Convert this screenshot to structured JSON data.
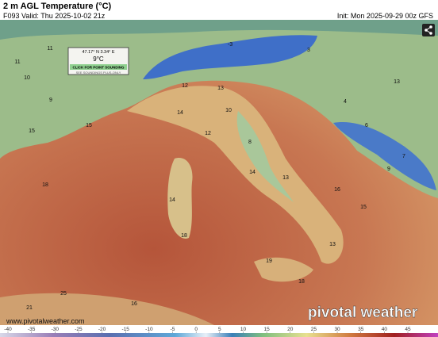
{
  "header": {
    "title": "2 m AGL Temperature (°C)",
    "valid": "F093 Valid: Thu 2025-10-02 21z",
    "init": "Init: Mon 2025-09-29 00z GFS"
  },
  "tooltip": {
    "coords": "47.17° N 3.34° E",
    "value": "9°C",
    "button": "CLICK FOR POINT SOUNDING",
    "note": "SEE SOUNDINGS PLUS-ONLY"
  },
  "map_labels": [
    "11",
    "11",
    "10",
    "9",
    "15",
    "15",
    "12",
    "13",
    "10",
    "14",
    "12",
    "8",
    "14",
    "13",
    "16",
    "15",
    "14",
    "18",
    "18",
    "13",
    "19",
    "18",
    "16",
    "21",
    "25",
    "3",
    "-3",
    "4",
    "6",
    "9",
    "7",
    "13"
  ],
  "watermark": "www.pivotalweather.com",
  "logo": "pivotal weather",
  "colorbar": {
    "ticks": [
      -40,
      -35,
      -30,
      -25,
      -20,
      -15,
      -10,
      -5,
      0,
      5,
      10,
      15,
      20,
      25,
      30,
      35,
      40,
      45
    ]
  }
}
